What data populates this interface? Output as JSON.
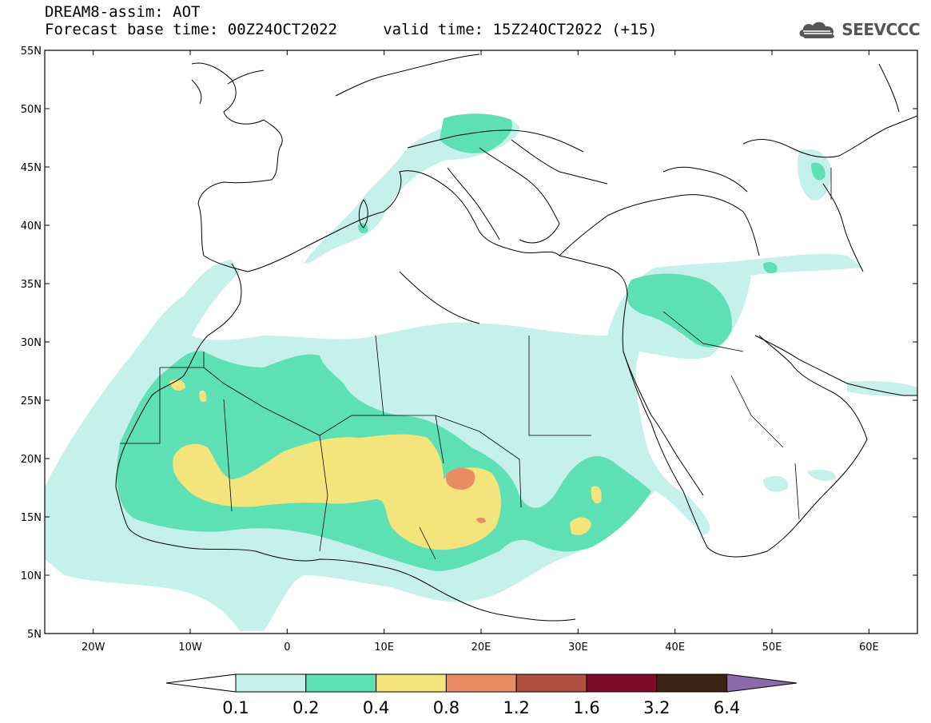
{
  "header": {
    "title": "DREAM8-assim: AOT",
    "subtitle": "Forecast base time: 00Z24OCT2022     valid time: 15Z24OCT2022 (+15)"
  },
  "logo": {
    "text": "SEEVCCC",
    "icon": "cloud-icon",
    "color": "#555555"
  },
  "map": {
    "lon_range": [
      -25,
      65
    ],
    "lat_range": [
      5,
      55
    ],
    "lon_ticks": [
      {
        "value": -20,
        "label": "20W"
      },
      {
        "value": -10,
        "label": "10W"
      },
      {
        "value": 0,
        "label": "0"
      },
      {
        "value": 10,
        "label": "10E"
      },
      {
        "value": 20,
        "label": "20E"
      },
      {
        "value": 30,
        "label": "30E"
      },
      {
        "value": 40,
        "label": "40E"
      },
      {
        "value": 50,
        "label": "50E"
      },
      {
        "value": 60,
        "label": "60E"
      }
    ],
    "lat_ticks": [
      {
        "value": 55,
        "label": "55N"
      },
      {
        "value": 50,
        "label": "50N"
      },
      {
        "value": 45,
        "label": "45N"
      },
      {
        "value": 40,
        "label": "40N"
      },
      {
        "value": 35,
        "label": "35N"
      },
      {
        "value": 30,
        "label": "30N"
      },
      {
        "value": 25,
        "label": "25N"
      },
      {
        "value": 20,
        "label": "20N"
      },
      {
        "value": 15,
        "label": "15N"
      },
      {
        "value": 10,
        "label": "10N"
      },
      {
        "value": 5,
        "label": "5N"
      }
    ]
  },
  "colorbar": {
    "levels": [
      "0.1",
      "0.2",
      "0.4",
      "0.8",
      "1.2",
      "1.6",
      "3.2",
      "6.4"
    ],
    "colors": [
      "#c5f1ea",
      "#5ee0b5",
      "#f4e47c",
      "#e98b64",
      "#b04e40",
      "#7d0a2a",
      "#3c2414",
      "#8a6aa8"
    ],
    "low_color": "#ffffff"
  }
}
